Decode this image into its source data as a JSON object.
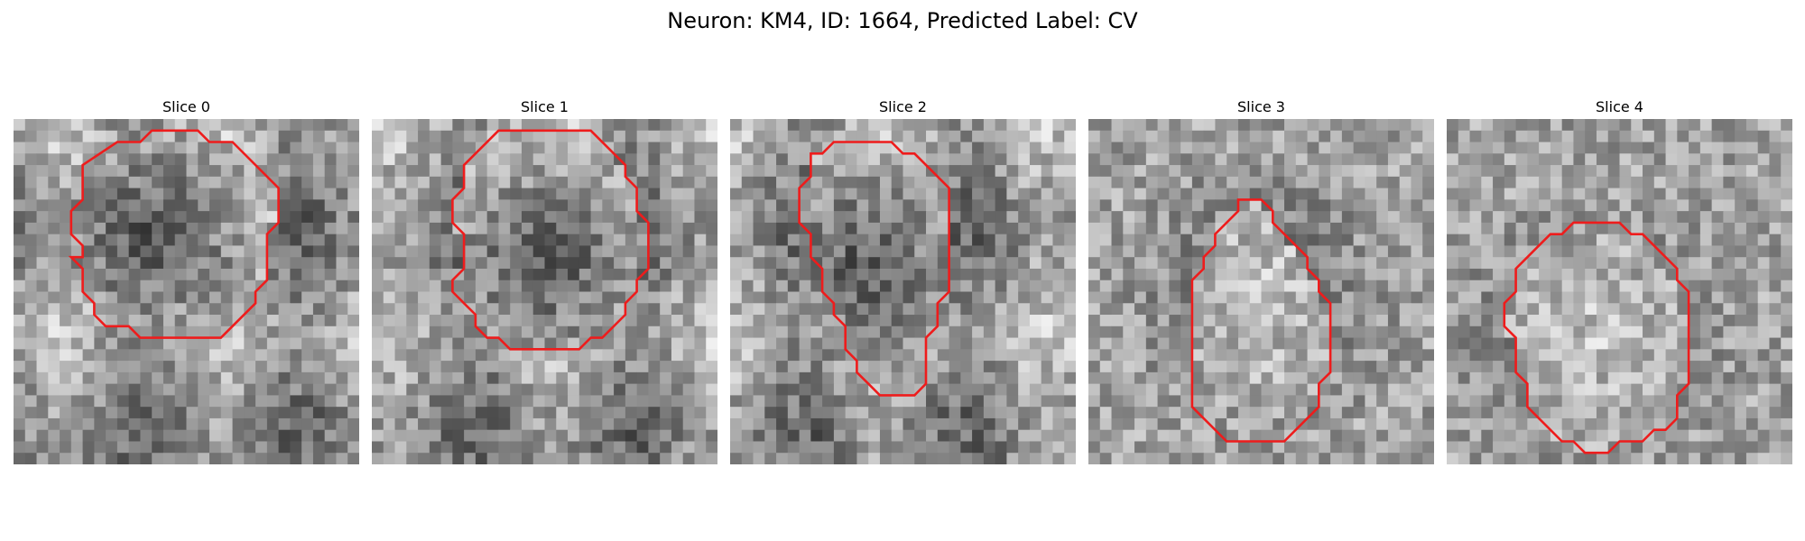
{
  "figure": {
    "title": "Neuron: KM4, ID: 1664, Predicted Label: CV"
  },
  "contour_color": "#ee1c1c",
  "panels": [
    {
      "title": "Slice 0",
      "pattern": "dark-core",
      "contour": [
        [
          13,
          1
        ],
        [
          16,
          1
        ],
        [
          17,
          2
        ],
        [
          19,
          2
        ],
        [
          23,
          6
        ],
        [
          23,
          9
        ],
        [
          22,
          10
        ],
        [
          22,
          14
        ],
        [
          21,
          15
        ],
        [
          21,
          16
        ],
        [
          18,
          19
        ],
        [
          11,
          19
        ],
        [
          10,
          18
        ],
        [
          8,
          18
        ],
        [
          7,
          17
        ],
        [
          7,
          16
        ],
        [
          6,
          15
        ],
        [
          6,
          13
        ],
        [
          5,
          12
        ],
        [
          5,
          12
        ],
        [
          6,
          12
        ],
        [
          6,
          11
        ],
        [
          5,
          10
        ],
        [
          5,
          8
        ],
        [
          6,
          7
        ],
        [
          6,
          4
        ],
        [
          9,
          2
        ],
        [
          11,
          2
        ],
        [
          12,
          1
        ]
      ]
    },
    {
      "title": "Slice 1",
      "pattern": "dark-core",
      "contour": [
        [
          11,
          1
        ],
        [
          19,
          1
        ],
        [
          22,
          4
        ],
        [
          22,
          5
        ],
        [
          23,
          6
        ],
        [
          23,
          8
        ],
        [
          24,
          9
        ],
        [
          24,
          13
        ],
        [
          23,
          14
        ],
        [
          23,
          15
        ],
        [
          22,
          16
        ],
        [
          22,
          17
        ],
        [
          20,
          19
        ],
        [
          19,
          19
        ],
        [
          18,
          20
        ],
        [
          12,
          20
        ],
        [
          11,
          19
        ],
        [
          10,
          19
        ],
        [
          9,
          18
        ],
        [
          9,
          17
        ],
        [
          8,
          16
        ],
        [
          7,
          15
        ],
        [
          7,
          14
        ],
        [
          8,
          13
        ],
        [
          8,
          10
        ],
        [
          7,
          9
        ],
        [
          7,
          7
        ],
        [
          8,
          6
        ],
        [
          8,
          4
        ]
      ]
    },
    {
      "title": "Slice 2",
      "pattern": "dark-core",
      "contour": [
        [
          11,
          2
        ],
        [
          14,
          2
        ],
        [
          15,
          3
        ],
        [
          16,
          3
        ],
        [
          19,
          6
        ],
        [
          19,
          15
        ],
        [
          18,
          16
        ],
        [
          18,
          18
        ],
        [
          17,
          19
        ],
        [
          17,
          23
        ],
        [
          16,
          24
        ],
        [
          13,
          24
        ],
        [
          12,
          23
        ],
        [
          11,
          22
        ],
        [
          11,
          21
        ],
        [
          10,
          20
        ],
        [
          10,
          18
        ],
        [
          9,
          17
        ],
        [
          9,
          16
        ],
        [
          8,
          15
        ],
        [
          8,
          13
        ],
        [
          7,
          12
        ],
        [
          7,
          10
        ],
        [
          6,
          9
        ],
        [
          6,
          6
        ],
        [
          7,
          5
        ],
        [
          7,
          3
        ],
        [
          8,
          3
        ],
        [
          9,
          2
        ]
      ]
    },
    {
      "title": "Slice 3",
      "pattern": "bright-core",
      "contour": [
        [
          13,
          7
        ],
        [
          15,
          7
        ],
        [
          16,
          8
        ],
        [
          16,
          9
        ],
        [
          19,
          12
        ],
        [
          19,
          13
        ],
        [
          20,
          14
        ],
        [
          20,
          15
        ],
        [
          21,
          16
        ],
        [
          21,
          22
        ],
        [
          20,
          23
        ],
        [
          20,
          25
        ],
        [
          17,
          28
        ],
        [
          12,
          28
        ],
        [
          9,
          25
        ],
        [
          9,
          14
        ],
        [
          10,
          13
        ],
        [
          10,
          12
        ],
        [
          11,
          11
        ],
        [
          11,
          10
        ],
        [
          13,
          8
        ]
      ]
    },
    {
      "title": "Slice 4",
      "pattern": "bright-core",
      "contour": [
        [
          13,
          9
        ],
        [
          15,
          9
        ],
        [
          16,
          10
        ],
        [
          17,
          10
        ],
        [
          20,
          13
        ],
        [
          20,
          14
        ],
        [
          21,
          15
        ],
        [
          21,
          23
        ],
        [
          20,
          24
        ],
        [
          20,
          26
        ],
        [
          19,
          27
        ],
        [
          18,
          27
        ],
        [
          17,
          28
        ],
        [
          15,
          28
        ],
        [
          14,
          29
        ],
        [
          12,
          29
        ],
        [
          11,
          28
        ],
        [
          10,
          28
        ],
        [
          8,
          26
        ],
        [
          7,
          25
        ],
        [
          7,
          23
        ],
        [
          6,
          22
        ],
        [
          6,
          19
        ],
        [
          5,
          18
        ],
        [
          5,
          16
        ],
        [
          6,
          15
        ],
        [
          6,
          13
        ],
        [
          7,
          12
        ],
        [
          8,
          11
        ],
        [
          9,
          10
        ],
        [
          10,
          10
        ],
        [
          11,
          9
        ]
      ]
    }
  ]
}
